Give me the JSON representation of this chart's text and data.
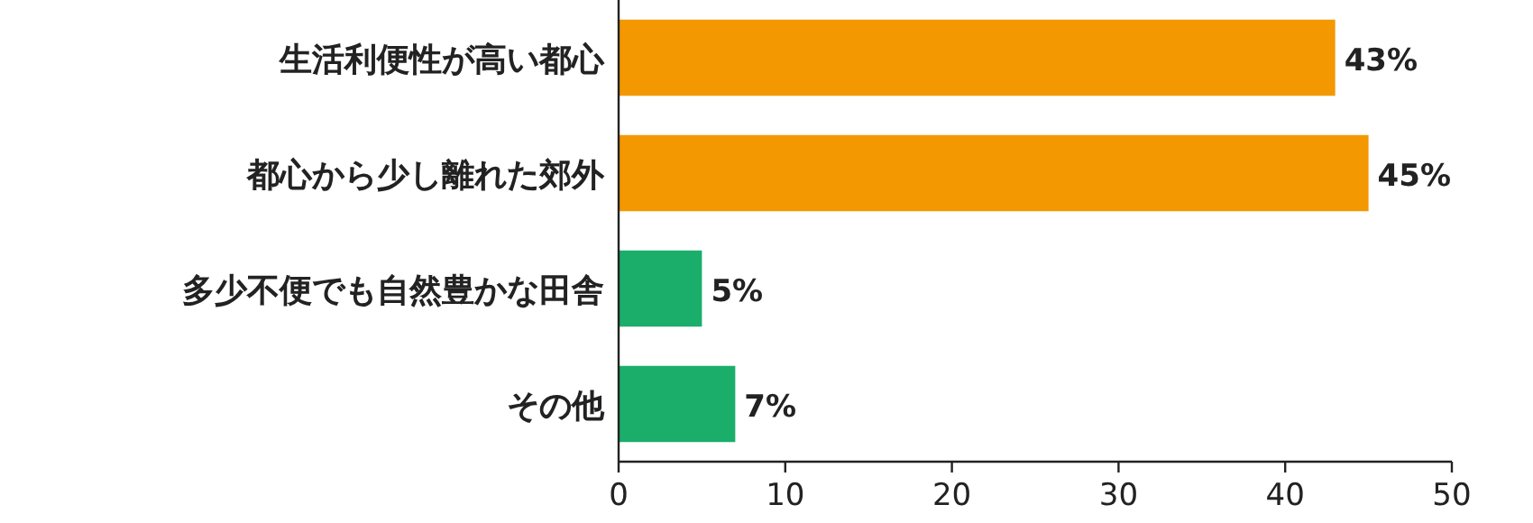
{
  "chart_data": {
    "type": "bar",
    "orientation": "horizontal",
    "categories": [
      "生活利便性が高い都心",
      "都心から少し離れた郊外",
      "多少不便でも自然豊かな田舎",
      "その他"
    ],
    "values": [
      43,
      45,
      5,
      7
    ],
    "colors": [
      "#f39800",
      "#f39800",
      "#1aae6a",
      "#1aae6a"
    ],
    "value_labels": [
      "43%",
      "45%",
      "5%",
      "7%"
    ],
    "xlim": [
      0,
      50
    ],
    "xticks": [
      0,
      10,
      20,
      30,
      40,
      50
    ]
  }
}
